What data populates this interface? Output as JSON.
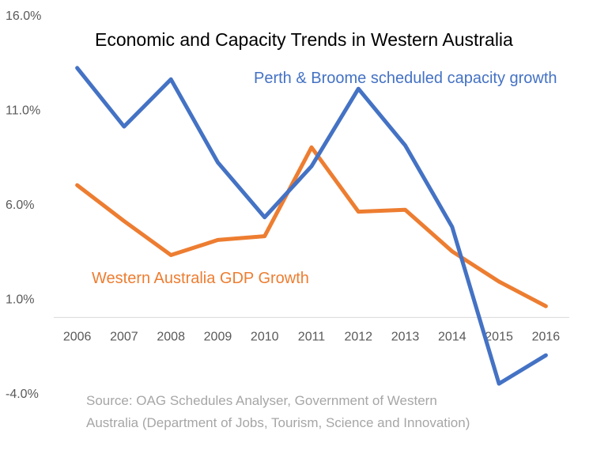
{
  "chart_data": {
    "type": "line",
    "title": "Economic and Capacity Trends in Western Australia",
    "categories": [
      "2006",
      "2007",
      "2008",
      "2009",
      "2010",
      "2011",
      "2012",
      "2013",
      "2014",
      "2015",
      "2016"
    ],
    "y_tick_labels": [
      "16.0%",
      "11.0%",
      "6.0%",
      "1.0%",
      "-4.0%"
    ],
    "y_ticks": [
      16,
      11,
      6,
      1,
      -4
    ],
    "ylim": [
      -4,
      16
    ],
    "x_axis_at": 0,
    "grid": false,
    "legend": "none (series labelled directly on chart)",
    "series": [
      {
        "name": "Perth & Broome scheduled capacity growth",
        "color": "#4472C4",
        "values": [
          13.2,
          10.1,
          12.6,
          8.2,
          5.3,
          8.0,
          12.1,
          9.1,
          4.8,
          -3.5,
          -2.0
        ]
      },
      {
        "name": "Western Australia GDP Growth",
        "color": "#ED7D31",
        "values": [
          7.0,
          5.1,
          3.3,
          4.1,
          4.3,
          9.0,
          5.6,
          5.7,
          3.5,
          1.9,
          0.6
        ]
      }
    ],
    "source_note": [
      "Source: OAG Schedules Analyser, Government of Western",
      "Australia (Department of Jobs, Tourism, Science and Innovation)"
    ]
  }
}
